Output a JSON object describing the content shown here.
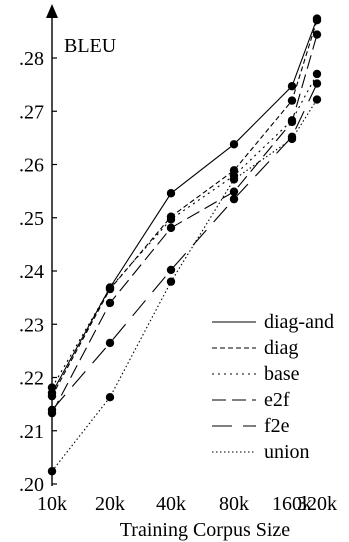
{
  "chart_data": {
    "type": "line",
    "title": "",
    "xlabel": "Training Corpus Size",
    "ylabel": "BLEU",
    "categories": [
      "10k",
      "20k",
      "40k",
      "80k",
      "160k",
      "320k"
    ],
    "yticks": [
      {
        "value": 0.2,
        "label": ".20"
      },
      {
        "value": 0.21,
        "label": ".21"
      },
      {
        "value": 0.22,
        "label": ".22"
      },
      {
        "value": 0.23,
        "label": ".23"
      },
      {
        "value": 0.24,
        "label": ".24"
      },
      {
        "value": 0.25,
        "label": ".25"
      },
      {
        "value": 0.26,
        "label": ".26"
      },
      {
        "value": 0.27,
        "label": ".27"
      },
      {
        "value": 0.28,
        "label": ".28"
      }
    ],
    "ylim": [
      0.2,
      0.289
    ],
    "grid": false,
    "legend_position": "bottom-right",
    "series": [
      {
        "name": "diag-and",
        "dash": "solid",
        "values": [
          0.2171,
          0.2369,
          0.2546,
          0.2638,
          0.2747,
          0.2874
        ]
      },
      {
        "name": "diag",
        "dash": "short-dash",
        "values": [
          0.2165,
          0.2366,
          0.2502,
          0.2589,
          0.272,
          0.2871
        ]
      },
      {
        "name": "base",
        "dash": "dotted",
        "values": [
          0.2181,
          0.2368,
          0.2497,
          0.2579,
          0.2683,
          0.277
        ]
      },
      {
        "name": "e2f",
        "dash": "long-dash",
        "values": [
          0.2133,
          0.234,
          0.2481,
          0.2549,
          0.268,
          0.2844
        ]
      },
      {
        "name": "f2e",
        "dash": "very-long-dash",
        "values": [
          0.2139,
          0.2265,
          0.2402,
          0.2535,
          0.2652,
          0.2752
        ]
      },
      {
        "name": "union",
        "dash": "fine-dotted",
        "values": [
          0.2024,
          0.2163,
          0.238,
          0.2572,
          0.2648,
          0.2722
        ]
      }
    ]
  }
}
